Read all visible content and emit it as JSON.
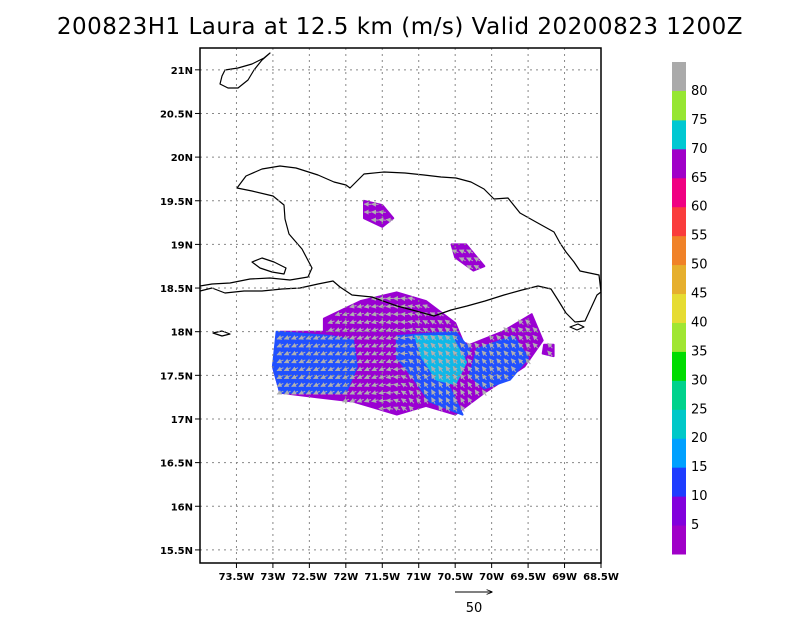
{
  "title": "200823H1 Laura at 12.5 km (m/s) Valid 20200823 1200Z",
  "map": {
    "lon_range": [
      -74.0,
      -68.5
    ],
    "lat_range": [
      15.35,
      21.25
    ],
    "lon_ticks": [
      {
        "value": -73.5,
        "label": "73.5W"
      },
      {
        "value": -73.0,
        "label": "73W"
      },
      {
        "value": -72.5,
        "label": "72.5W"
      },
      {
        "value": -72.0,
        "label": "72W"
      },
      {
        "value": -71.5,
        "label": "71.5W"
      },
      {
        "value": -71.0,
        "label": "71W"
      },
      {
        "value": -70.5,
        "label": "70.5W"
      },
      {
        "value": -70.0,
        "label": "70W"
      },
      {
        "value": -69.5,
        "label": "69.5W"
      },
      {
        "value": -69.0,
        "label": "69W"
      },
      {
        "value": -68.5,
        "label": "68.5W"
      }
    ],
    "lat_ticks": [
      {
        "value": 15.5,
        "label": "15.5N"
      },
      {
        "value": 16.0,
        "label": "16N"
      },
      {
        "value": 16.5,
        "label": "16.5N"
      },
      {
        "value": 17.0,
        "label": "17N"
      },
      {
        "value": 17.5,
        "label": "17.5N"
      },
      {
        "value": 18.0,
        "label": "18N"
      },
      {
        "value": 18.5,
        "label": "18.5N"
      },
      {
        "value": 19.0,
        "label": "19N"
      },
      {
        "value": 19.5,
        "label": "19.5N"
      },
      {
        "value": 20.0,
        "label": "20N"
      },
      {
        "value": 20.5,
        "label": "20.5N"
      },
      {
        "value": 21.0,
        "label": "21N"
      }
    ],
    "grid": true,
    "grid_style": "dotted"
  },
  "colorbar": {
    "levels": [
      {
        "label": "5",
        "color": "#a000c8"
      },
      {
        "label": "10",
        "color": "#8200dc"
      },
      {
        "label": "15",
        "color": "#1e3cff"
      },
      {
        "label": "20",
        "color": "#00a0ff"
      },
      {
        "label": "25",
        "color": "#00c8c8"
      },
      {
        "label": "30",
        "color": "#00d28c"
      },
      {
        "label": "35",
        "color": "#00dc00"
      },
      {
        "label": "40",
        "color": "#a0e632"
      },
      {
        "label": "45",
        "color": "#e6dc32"
      },
      {
        "label": "50",
        "color": "#e6af2d"
      },
      {
        "label": "55",
        "color": "#f08228"
      },
      {
        "label": "60",
        "color": "#fa3c3c"
      },
      {
        "label": "65",
        "color": "#f00082"
      },
      {
        "label": "70",
        "color": "#a000c8"
      },
      {
        "label": "75",
        "color": "#00c8d2"
      },
      {
        "label": "80",
        "color": "#96e632"
      }
    ],
    "top_color": "#aaaaaa"
  },
  "reference_vector": {
    "label": "50",
    "units": "m/s"
  },
  "wind_field": {
    "colors": {
      "low": "#9a00d2",
      "mid": "#2050ff",
      "high": "#10b8e8",
      "vector": "#b0b0b0"
    },
    "regions": [
      {
        "id": "main-south",
        "poly": [
          [
            -72.9,
            18.0
          ],
          [
            -72.0,
            18.0
          ],
          [
            -71.3,
            17.9
          ],
          [
            -70.8,
            18.0
          ],
          [
            -70.3,
            17.85
          ],
          [
            -69.85,
            18.0
          ],
          [
            -69.45,
            18.2
          ],
          [
            -69.3,
            17.9
          ],
          [
            -69.55,
            17.6
          ],
          [
            -70.1,
            17.3
          ],
          [
            -70.5,
            17.05
          ],
          [
            -70.9,
            17.15
          ],
          [
            -71.3,
            17.05
          ],
          [
            -71.9,
            17.2
          ],
          [
            -72.4,
            17.25
          ],
          [
            -72.9,
            17.3
          ],
          [
            -73.0,
            17.6
          ]
        ],
        "level": "low"
      },
      {
        "id": "south-coast-band",
        "poly": [
          [
            -72.3,
            18.15
          ],
          [
            -71.8,
            18.35
          ],
          [
            -71.3,
            18.45
          ],
          [
            -70.9,
            18.35
          ],
          [
            -70.5,
            18.1
          ],
          [
            -70.4,
            17.9
          ],
          [
            -71.4,
            17.85
          ],
          [
            -72.3,
            17.9
          ]
        ],
        "level": "low"
      },
      {
        "id": "west-blue",
        "poly": [
          [
            -72.95,
            18.0
          ],
          [
            -72.2,
            17.95
          ],
          [
            -71.9,
            17.9
          ],
          [
            -71.85,
            17.6
          ],
          [
            -72.0,
            17.3
          ],
          [
            -72.9,
            17.3
          ],
          [
            -73.0,
            17.6
          ]
        ],
        "level": "mid"
      },
      {
        "id": "center-blue",
        "poly": [
          [
            -71.3,
            17.95
          ],
          [
            -70.5,
            18.0
          ],
          [
            -70.3,
            17.8
          ],
          [
            -70.6,
            17.4
          ],
          [
            -70.4,
            17.05
          ],
          [
            -70.85,
            17.2
          ],
          [
            -71.1,
            17.5
          ],
          [
            -71.3,
            17.7
          ]
        ],
        "level": "mid"
      },
      {
        "id": "east-blue",
        "poly": [
          [
            -70.2,
            17.8
          ],
          [
            -69.7,
            17.95
          ],
          [
            -69.5,
            17.7
          ],
          [
            -69.75,
            17.45
          ],
          [
            -70.1,
            17.35
          ],
          [
            -70.3,
            17.5
          ]
        ],
        "level": "mid"
      },
      {
        "id": "center-cyan",
        "poly": [
          [
            -71.05,
            17.95
          ],
          [
            -70.55,
            17.95
          ],
          [
            -70.35,
            17.65
          ],
          [
            -70.5,
            17.4
          ],
          [
            -70.75,
            17.45
          ],
          [
            -70.95,
            17.7
          ]
        ],
        "level": "high"
      },
      {
        "id": "north-patch",
        "poly": [
          [
            -71.75,
            19.5
          ],
          [
            -71.5,
            19.45
          ],
          [
            -71.35,
            19.3
          ],
          [
            -71.5,
            19.2
          ],
          [
            -71.75,
            19.3
          ]
        ],
        "level": "low"
      },
      {
        "id": "northeast-patch",
        "poly": [
          [
            -70.55,
            19.0
          ],
          [
            -70.35,
            19.0
          ],
          [
            -70.1,
            18.75
          ],
          [
            -70.25,
            18.7
          ],
          [
            -70.5,
            18.85
          ]
        ],
        "level": "low"
      },
      {
        "id": "east-tail",
        "poly": [
          [
            -69.28,
            17.85
          ],
          [
            -69.15,
            17.85
          ],
          [
            -69.15,
            17.72
          ],
          [
            -69.3,
            17.75
          ]
        ],
        "level": "low"
      }
    ]
  }
}
